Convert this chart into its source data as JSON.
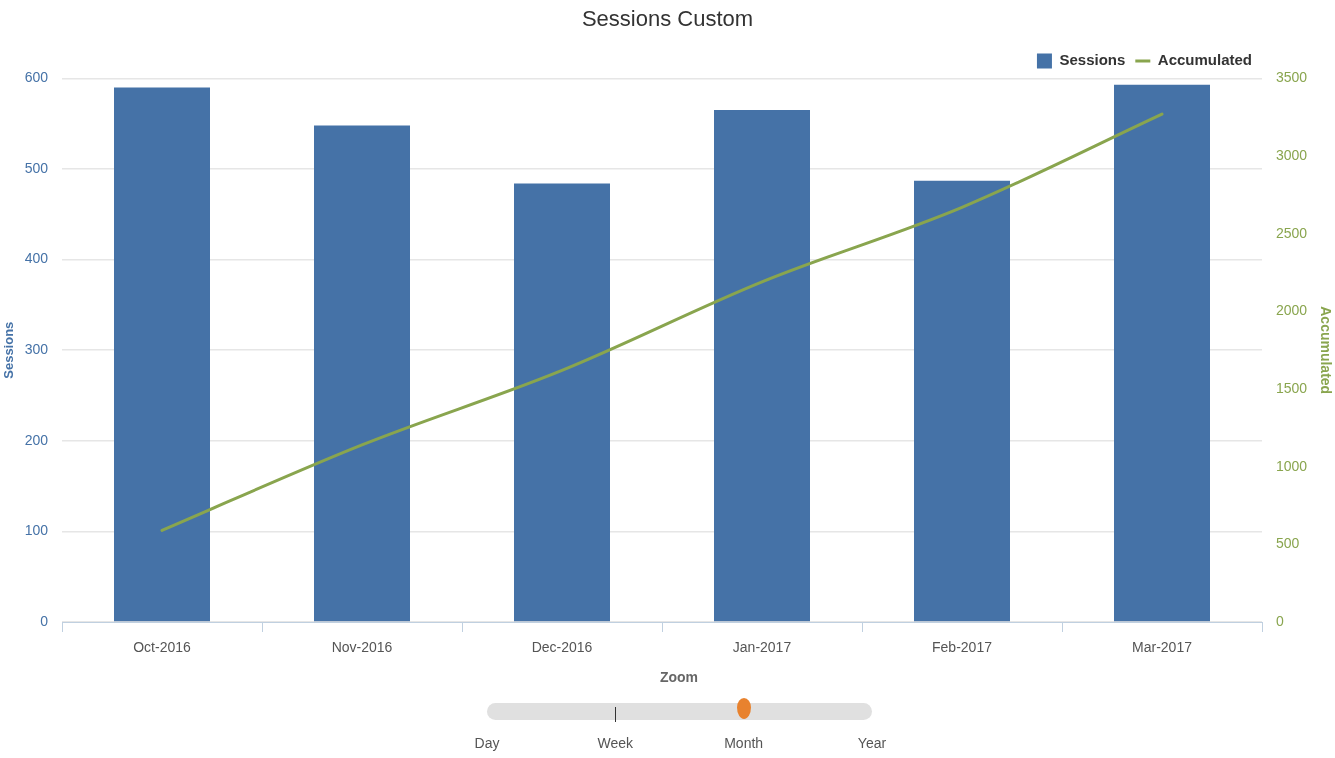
{
  "chart_data": {
    "type": "bar",
    "title": "Sessions Custom",
    "ylabel": "Sessions",
    "y2label": "Accumulated",
    "categories": [
      "Oct-2016",
      "Nov-2016",
      "Dec-2016",
      "Jan-2017",
      "Feb-2017",
      "Mar-2017"
    ],
    "series": [
      {
        "name": "Sessions",
        "type": "bar",
        "color": "#4572a7",
        "values": [
          590,
          548,
          484,
          565,
          487,
          593
        ]
      },
      {
        "name": "Accumulated",
        "type": "line",
        "axis": "y2",
        "color": "#89a54e",
        "values": [
          590,
          1140,
          1620,
          2190,
          2670,
          3270
        ]
      }
    ],
    "ylim": [
      0,
      600
    ],
    "yticks": [
      0,
      100,
      200,
      300,
      400,
      500,
      600
    ],
    "y2lim": [
      0,
      3500
    ],
    "y2ticks": [
      0,
      500,
      1000,
      1500,
      2000,
      2500,
      3000,
      3500
    ],
    "grid": "y",
    "legend": "top right",
    "marker": "none",
    "line_style": "solid",
    "annotations": [
      "Zoom",
      "Day",
      "Week",
      "Month",
      "Year"
    ]
  }
}
